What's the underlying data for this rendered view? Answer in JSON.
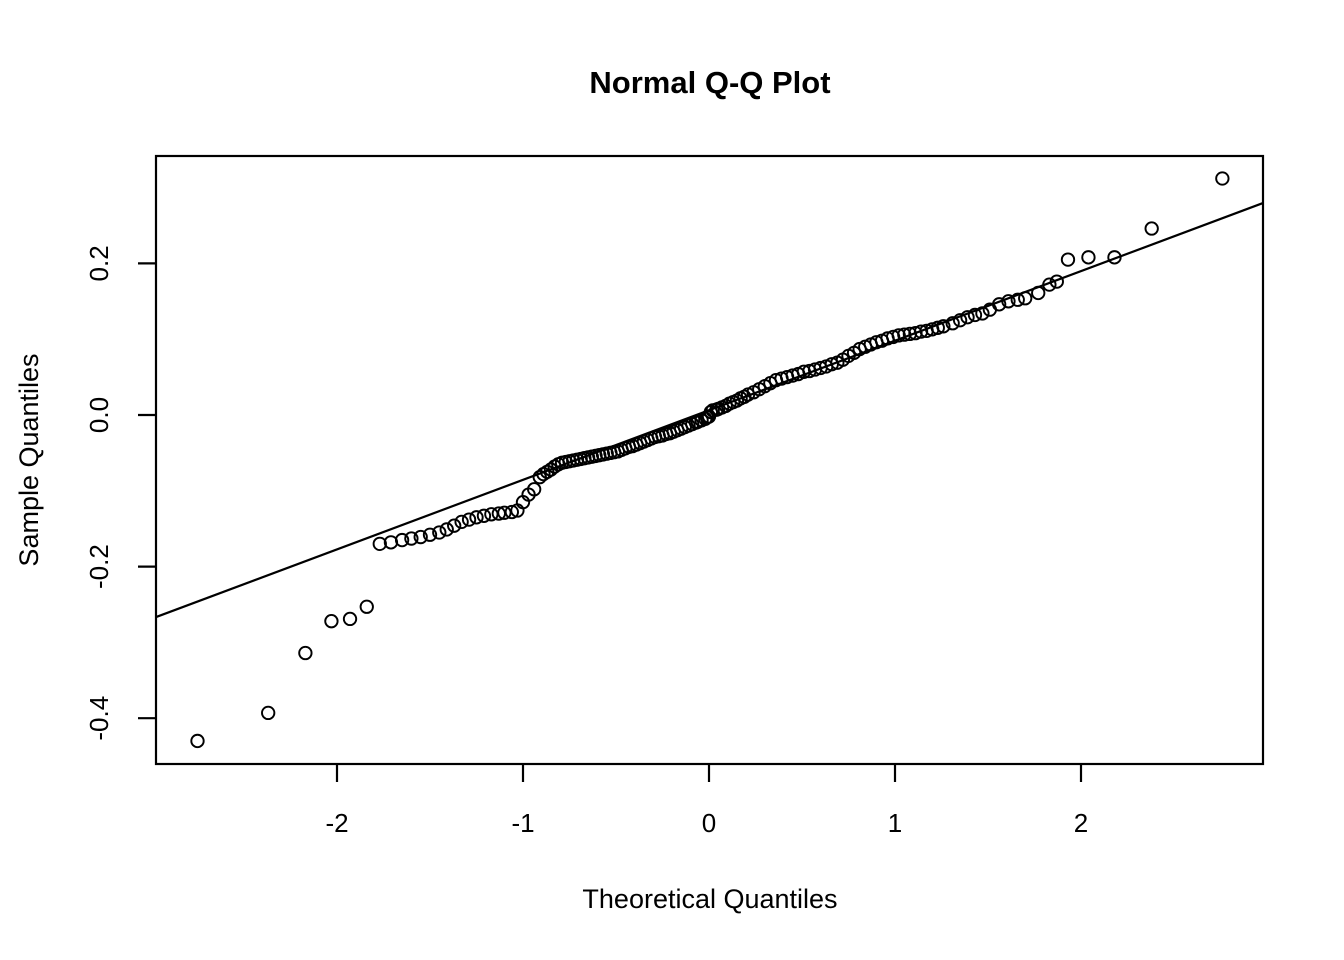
{
  "chart_data": {
    "type": "scatter",
    "title": "Normal Q-Q Plot",
    "xlabel": "Theoretical Quantiles",
    "ylabel": "Sample Quantiles",
    "x_ticks": [
      -2,
      -1,
      0,
      1,
      2
    ],
    "y_ticks": [
      0.2,
      0.0,
      -0.2,
      -0.4
    ],
    "xlim": [
      -2.973,
      2.978
    ],
    "ylim": [
      -0.46,
      0.342
    ],
    "grid": false,
    "legend": "none",
    "point_color": "#000000",
    "line_color": "#000000",
    "qq_line": {
      "slope": 0.0917,
      "intercept": 0.006,
      "x1": -2.973,
      "y1": -0.2666,
      "x2": 2.978,
      "y2": 0.2796
    },
    "points": [
      [
        -2.75,
        -0.43
      ],
      [
        -2.37,
        -0.393
      ],
      [
        -2.17,
        -0.314
      ],
      [
        -2.03,
        -0.272
      ],
      [
        -1.93,
        -0.269
      ],
      [
        -1.84,
        -0.253
      ],
      [
        -1.77,
        -0.17
      ],
      [
        -1.71,
        -0.168
      ],
      [
        -1.65,
        -0.165
      ],
      [
        -1.6,
        -0.163
      ],
      [
        -1.55,
        -0.161
      ],
      [
        -1.5,
        -0.158
      ],
      [
        -1.45,
        -0.155
      ],
      [
        -1.41,
        -0.151
      ],
      [
        -1.37,
        -0.146
      ],
      [
        -1.33,
        -0.141
      ],
      [
        -1.29,
        -0.138
      ],
      [
        -1.25,
        -0.135
      ],
      [
        -1.21,
        -0.133
      ],
      [
        -1.17,
        -0.131
      ],
      [
        -1.13,
        -0.13
      ],
      [
        -1.1,
        -0.129
      ],
      [
        -1.06,
        -0.128
      ],
      [
        -1.03,
        -0.126
      ],
      [
        -1.0,
        -0.115
      ],
      [
        -0.97,
        -0.105
      ],
      [
        -0.94,
        -0.098
      ],
      [
        -0.91,
        -0.082
      ],
      [
        -0.89,
        -0.078
      ],
      [
        -0.87,
        -0.075
      ],
      [
        -0.85,
        -0.072
      ],
      [
        -0.83,
        -0.068
      ],
      [
        -0.81,
        -0.065
      ],
      [
        -0.79,
        -0.063
      ],
      [
        -0.77,
        -0.062
      ],
      [
        -0.75,
        -0.061
      ],
      [
        -0.73,
        -0.06
      ],
      [
        -0.71,
        -0.059
      ],
      [
        -0.69,
        -0.058
      ],
      [
        -0.67,
        -0.057
      ],
      [
        -0.65,
        -0.056
      ],
      [
        -0.63,
        -0.055
      ],
      [
        -0.61,
        -0.054
      ],
      [
        -0.59,
        -0.053
      ],
      [
        -0.57,
        -0.052
      ],
      [
        -0.55,
        -0.051
      ],
      [
        -0.53,
        -0.05
      ],
      [
        -0.51,
        -0.049
      ],
      [
        -0.49,
        -0.048
      ],
      [
        -0.47,
        -0.046
      ],
      [
        -0.45,
        -0.044
      ],
      [
        -0.43,
        -0.042
      ],
      [
        -0.41,
        -0.041
      ],
      [
        -0.39,
        -0.039
      ],
      [
        -0.37,
        -0.037
      ],
      [
        -0.35,
        -0.035
      ],
      [
        -0.33,
        -0.033
      ],
      [
        -0.31,
        -0.031
      ],
      [
        -0.29,
        -0.029
      ],
      [
        -0.27,
        -0.028
      ],
      [
        -0.25,
        -0.027
      ],
      [
        -0.23,
        -0.025
      ],
      [
        -0.21,
        -0.024
      ],
      [
        -0.19,
        -0.022
      ],
      [
        -0.17,
        -0.02
      ],
      [
        -0.15,
        -0.018
      ],
      [
        -0.13,
        -0.016
      ],
      [
        -0.11,
        -0.014
      ],
      [
        -0.09,
        -0.012
      ],
      [
        -0.07,
        -0.01
      ],
      [
        -0.06,
        -0.009
      ],
      [
        -0.04,
        -0.007
      ],
      [
        -0.02,
        -0.005
      ],
      [
        -0.01,
        -0.003
      ],
      [
        0.0,
        -0.002
      ],
      [
        0.01,
        0.004
      ],
      [
        0.02,
        0.006
      ],
      [
        0.04,
        0.007
      ],
      [
        0.05,
        0.008
      ],
      [
        0.07,
        0.01
      ],
      [
        0.09,
        0.012
      ],
      [
        0.11,
        0.015
      ],
      [
        0.13,
        0.017
      ],
      [
        0.15,
        0.019
      ],
      [
        0.17,
        0.022
      ],
      [
        0.19,
        0.024
      ],
      [
        0.21,
        0.027
      ],
      [
        0.24,
        0.03
      ],
      [
        0.27,
        0.034
      ],
      [
        0.3,
        0.038
      ],
      [
        0.33,
        0.042
      ],
      [
        0.36,
        0.046
      ],
      [
        0.39,
        0.048
      ],
      [
        0.42,
        0.05
      ],
      [
        0.45,
        0.052
      ],
      [
        0.48,
        0.054
      ],
      [
        0.51,
        0.057
      ],
      [
        0.54,
        0.058
      ],
      [
        0.57,
        0.06
      ],
      [
        0.6,
        0.062
      ],
      [
        0.63,
        0.064
      ],
      [
        0.66,
        0.067
      ],
      [
        0.69,
        0.069
      ],
      [
        0.72,
        0.073
      ],
      [
        0.75,
        0.078
      ],
      [
        0.78,
        0.082
      ],
      [
        0.81,
        0.087
      ],
      [
        0.84,
        0.09
      ],
      [
        0.87,
        0.093
      ],
      [
        0.9,
        0.096
      ],
      [
        0.93,
        0.098
      ],
      [
        0.96,
        0.101
      ],
      [
        0.99,
        0.103
      ],
      [
        1.02,
        0.105
      ],
      [
        1.05,
        0.106
      ],
      [
        1.08,
        0.107
      ],
      [
        1.11,
        0.108
      ],
      [
        1.14,
        0.11
      ],
      [
        1.17,
        0.111
      ],
      [
        1.2,
        0.113
      ],
      [
        1.23,
        0.115
      ],
      [
        1.26,
        0.117
      ],
      [
        1.31,
        0.121
      ],
      [
        1.35,
        0.125
      ],
      [
        1.39,
        0.129
      ],
      [
        1.43,
        0.132
      ],
      [
        1.47,
        0.134
      ],
      [
        1.51,
        0.139
      ],
      [
        1.56,
        0.146
      ],
      [
        1.61,
        0.15
      ],
      [
        1.66,
        0.152
      ],
      [
        1.7,
        0.154
      ],
      [
        1.77,
        0.161
      ],
      [
        1.83,
        0.172
      ],
      [
        1.87,
        0.176
      ],
      [
        1.93,
        0.205
      ],
      [
        2.04,
        0.208
      ],
      [
        2.18,
        0.208
      ],
      [
        2.38,
        0.246
      ],
      [
        2.76,
        0.312
      ]
    ]
  }
}
